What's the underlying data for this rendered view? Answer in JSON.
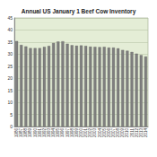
{
  "chart_data": {
    "type": "bar",
    "title": "Annual US January 1 Beef Cow Inventory",
    "categories": [
      "1986",
      "1987",
      "1988",
      "1989",
      "1990",
      "1991",
      "1992",
      "1993",
      "1994",
      "1995",
      "1996",
      "1997",
      "1998",
      "1999",
      "2000",
      "2001",
      "2002",
      "2003",
      "2004",
      "2005",
      "2006",
      "2007",
      "2008",
      "2009",
      "2010",
      "2011",
      "2012",
      "2013",
      "2014"
    ],
    "values": [
      35.4,
      33.8,
      33.2,
      32.5,
      32.5,
      32.5,
      33.0,
      33.4,
      34.6,
      35.2,
      35.3,
      34.3,
      33.7,
      33.5,
      33.6,
      33.4,
      33.1,
      33.0,
      32.9,
      33.0,
      32.7,
      32.7,
      32.4,
      31.7,
      31.4,
      30.9,
      30.2,
      29.6,
      29.0
    ],
    "color": "#7f7f7f",
    "ylim": [
      0,
      45
    ],
    "yticks": [
      0,
      5,
      10,
      15,
      20,
      25,
      30,
      35,
      40,
      45
    ],
    "grid": true
  }
}
